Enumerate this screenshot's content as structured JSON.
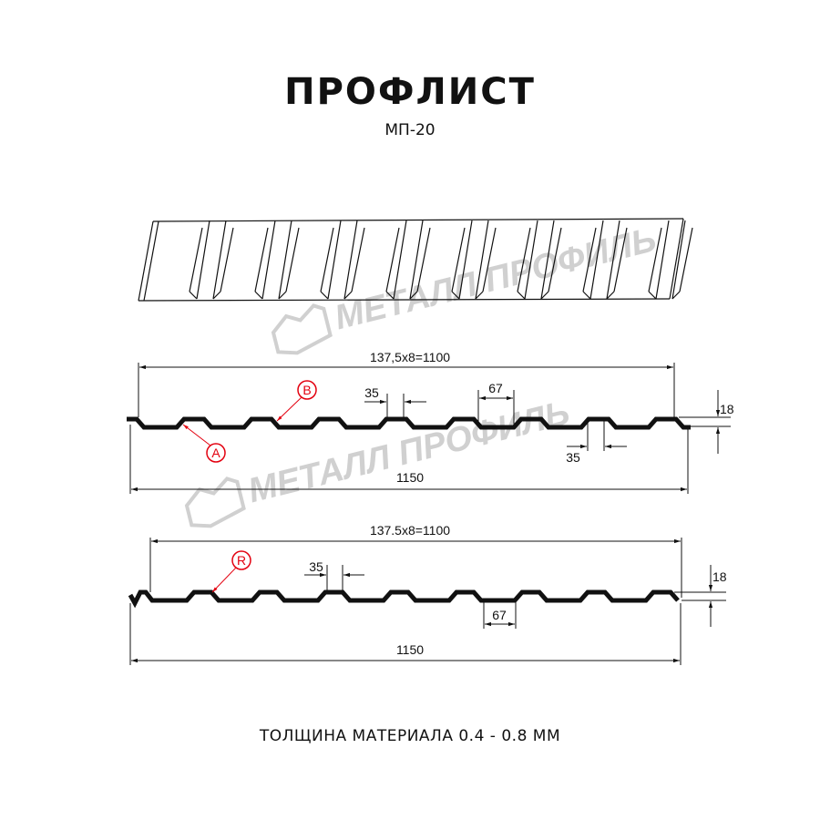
{
  "title": "ПРОФЛИСТ",
  "subtitle": "МП-20",
  "footer": "ТОЛЩИНА МАТЕРИАЛА 0.4 - 0.8 ММ",
  "watermark": "МЕТАЛЛ ПРОФИЛЬ",
  "colors": {
    "profile": "#111111",
    "callout": "#e3000f",
    "watermark": "#c8c8c8"
  },
  "profile1": {
    "overall_width": "137,5x8=1100",
    "total_width": "1150",
    "crest_width": "35",
    "trough_width": "67",
    "bottom_dim": "35",
    "height": "18",
    "callouts": [
      "A",
      "B"
    ]
  },
  "profile2": {
    "overall_width": "137.5x8=1100",
    "total_width": "1150",
    "crest_width": "35",
    "trough_width": "67",
    "height": "18",
    "callouts": [
      "R"
    ]
  }
}
